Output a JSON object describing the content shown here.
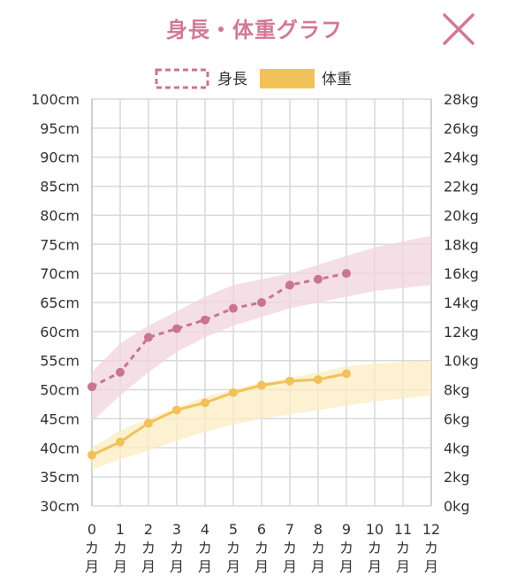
{
  "header": {
    "title": "身長・体重グラフ",
    "close_icon": "close-x-icon",
    "title_color": "#d27a93"
  },
  "chart_data": {
    "type": "line",
    "x": [
      0,
      1,
      2,
      3,
      4,
      5,
      6,
      7,
      8,
      9,
      10,
      11,
      12
    ],
    "xtick_labels": [
      [
        "0",
        "カ",
        "月"
      ],
      [
        "1",
        "カ",
        "月"
      ],
      [
        "2",
        "カ",
        "月"
      ],
      [
        "3",
        "カ",
        "月"
      ],
      [
        "4",
        "カ",
        "月"
      ],
      [
        "5",
        "カ",
        "月"
      ],
      [
        "6",
        "カ",
        "月"
      ],
      [
        "7",
        "カ",
        "月"
      ],
      [
        "8",
        "カ",
        "月"
      ],
      [
        "9",
        "カ",
        "月"
      ],
      [
        "10",
        "カ",
        "月"
      ],
      [
        "11",
        "カ",
        "月"
      ],
      [
        "12",
        "カ",
        "月"
      ]
    ],
    "y_left": {
      "ylim": [
        30,
        100
      ],
      "ticks": [
        30,
        35,
        40,
        45,
        50,
        55,
        60,
        65,
        70,
        75,
        80,
        85,
        90,
        95,
        100
      ],
      "tick_labels": [
        "30cm",
        "35cm",
        "40cm",
        "45cm",
        "50cm",
        "55cm",
        "60cm",
        "65cm",
        "70cm",
        "75cm",
        "80cm",
        "85cm",
        "90cm",
        "95cm",
        "100cm"
      ]
    },
    "y_right": {
      "ylim": [
        0,
        28
      ],
      "ticks": [
        0,
        2,
        4,
        6,
        8,
        10,
        12,
        14,
        16,
        18,
        20,
        22,
        24,
        26,
        28
      ],
      "tick_labels": [
        "0kg",
        "2kg",
        "4kg",
        "6kg",
        "8kg",
        "10kg",
        "12kg",
        "14kg",
        "16kg",
        "18kg",
        "20kg",
        "22kg",
        "24kg",
        "26kg",
        "28kg"
      ]
    },
    "grid": true,
    "legend_position": "top-center",
    "series": [
      {
        "name": "身長",
        "axis": "left",
        "style": "dashed",
        "color": "#c97590",
        "x": [
          0,
          1,
          2,
          3,
          4,
          5,
          6,
          7,
          8,
          9
        ],
        "values": [
          50.5,
          53,
          59,
          60.5,
          62,
          64,
          65,
          68,
          69,
          70
        ],
        "band_color": "#f2d4de",
        "band_x": [
          0,
          1,
          2,
          3,
          4,
          5,
          6,
          7,
          8,
          9,
          10,
          11,
          12
        ],
        "band_lower": [
          44.5,
          49,
          53,
          56.5,
          59,
          61,
          62.5,
          64,
          65,
          66,
          67,
          67.5,
          68
        ],
        "band_upper": [
          53,
          58,
          61,
          63.5,
          66,
          68,
          69,
          70,
          71.5,
          73,
          74.5,
          75.5,
          76.5
        ]
      },
      {
        "name": "体重",
        "axis": "right",
        "style": "solid",
        "color": "#f1c25a",
        "x": [
          0,
          1,
          2,
          3,
          4,
          5,
          6,
          7,
          8,
          9
        ],
        "values": [
          3.5,
          4.4,
          5.7,
          6.6,
          7.1,
          7.8,
          8.3,
          8.6,
          8.7,
          9.1
        ],
        "band_color": "#fbecc2",
        "band_x": [
          0,
          1,
          2,
          3,
          4,
          5,
          6,
          7,
          8,
          9,
          10,
          11,
          12
        ],
        "band_lower": [
          2.5,
          3.2,
          3.8,
          4.5,
          5.1,
          5.6,
          6,
          6.3,
          6.6,
          6.9,
          7.2,
          7.4,
          7.6
        ],
        "band_upper": [
          4,
          5.2,
          6,
          6.8,
          7.5,
          8,
          8.5,
          8.8,
          9.2,
          9.6,
          9.8,
          9.9,
          10
        ]
      }
    ]
  }
}
